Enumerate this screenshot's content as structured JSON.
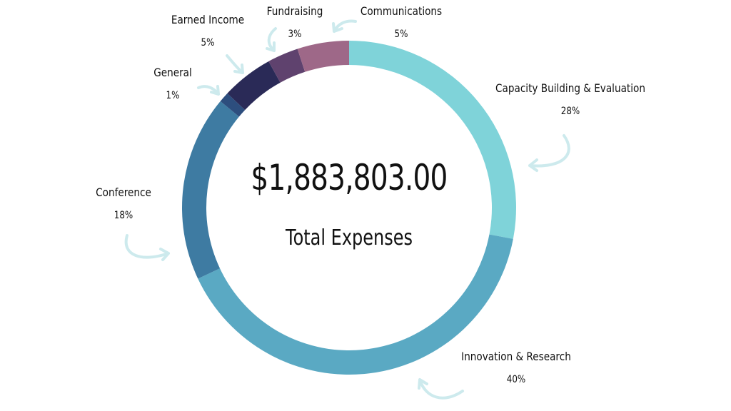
{
  "chart_data": {
    "type": "pie",
    "variant": "donut",
    "total": "$1,883,803.00",
    "caption": "Total Expenses",
    "slices": [
      {
        "label": "Capacity Building & Evaluation",
        "pct_label": "28%",
        "value": 28,
        "color": "#7fd3d9"
      },
      {
        "label": "Innovation & Research",
        "pct_label": "40%",
        "value": 40,
        "color": "#5aa9c3"
      },
      {
        "label": "Conference",
        "pct_label": "18%",
        "value": 18,
        "color": "#3e7ba2"
      },
      {
        "label": "General",
        "pct_label": "1%",
        "value": 1,
        "color": "#2d4e7e"
      },
      {
        "label": "Earned Income",
        "pct_label": "5%",
        "value": 5,
        "color": "#2a2a57"
      },
      {
        "label": "Fundraising",
        "pct_label": "3%",
        "value": 3,
        "color": "#5f426e"
      },
      {
        "label": "Communications",
        "pct_label": "5%",
        "value": 5,
        "color": "#9e6888"
      }
    ],
    "arrow_color": "#cdeaed"
  }
}
